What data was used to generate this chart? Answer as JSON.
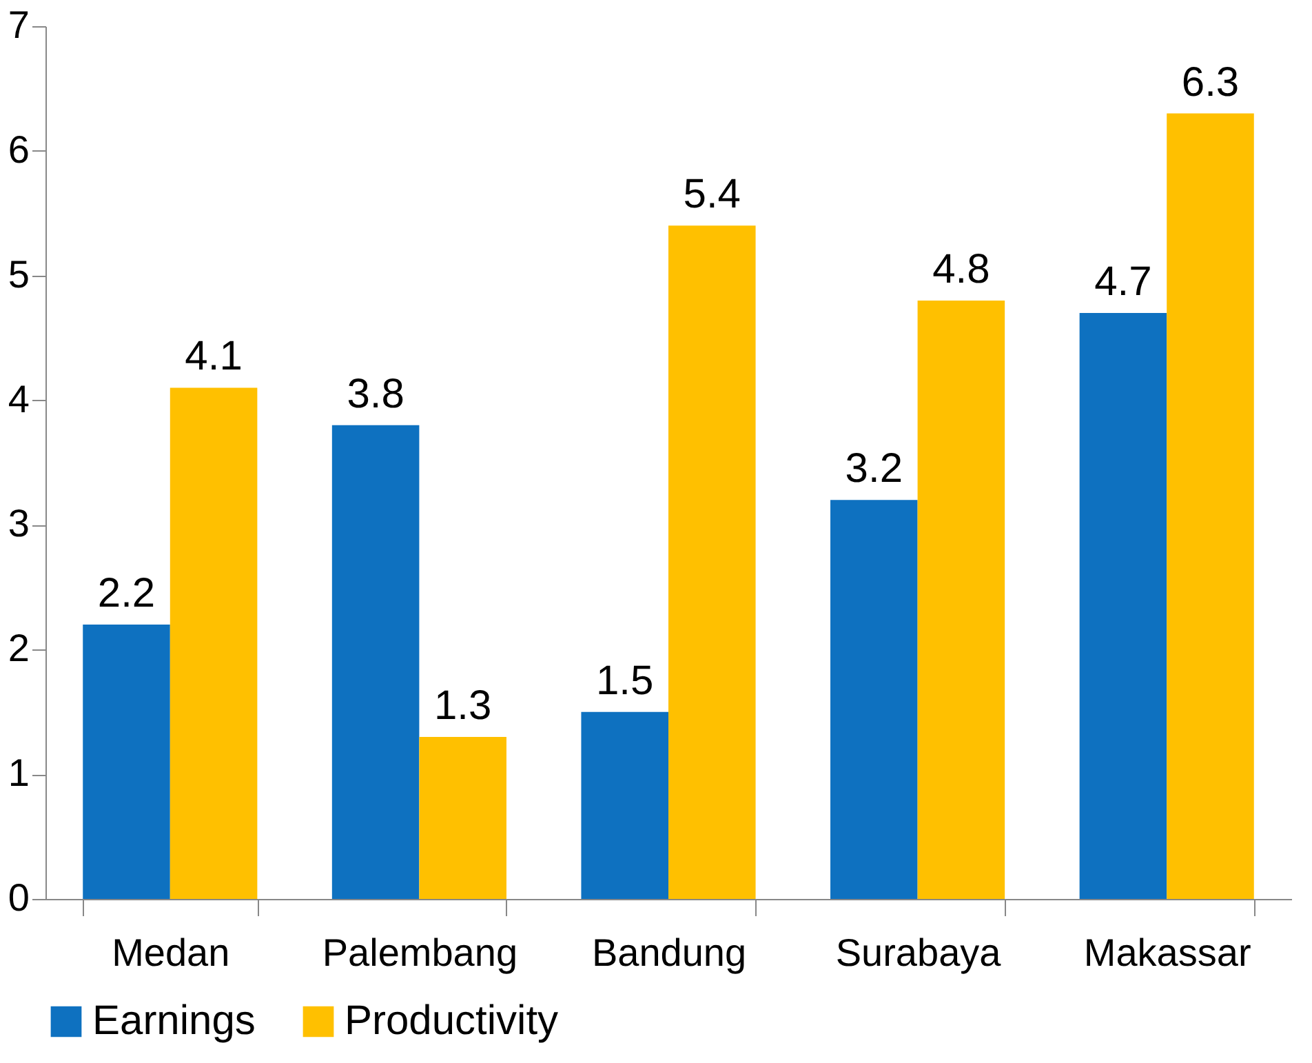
{
  "chart_data": {
    "type": "bar",
    "categories": [
      "Medan",
      "Palembang",
      "Bandung",
      "Surabaya",
      "Makassar"
    ],
    "series": [
      {
        "name": "Earnings",
        "color": "#0e71c0",
        "values": [
          2.2,
          3.8,
          1.5,
          3.2,
          4.7
        ]
      },
      {
        "name": "Productivity",
        "color": "#ffc000",
        "values": [
          4.1,
          1.3,
          5.4,
          4.8,
          6.3
        ]
      }
    ],
    "ylim": [
      0,
      7
    ],
    "yticks": [
      0,
      1,
      2,
      3,
      4,
      5,
      6,
      7
    ],
    "grid": false,
    "legend": "bottom",
    "data_labels": true
  }
}
